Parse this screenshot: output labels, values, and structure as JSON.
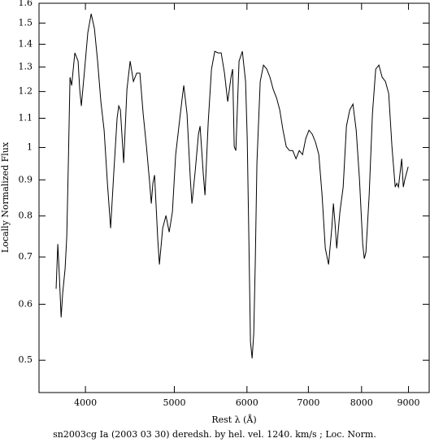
{
  "chart_data": {
    "type": "line",
    "title": "sn2003cg Ia (2003 03 30) deredsh. by hel. vel.  1240. km/s ;  Loc. Norm.",
    "xlabel": "Rest λ (Å)",
    "ylabel": "Locally Normalized Flux",
    "xscale": "log",
    "yscale": "log",
    "xlim": [
      3560,
      9480
    ],
    "ylim": [
      0.45,
      1.6
    ],
    "xticks": [
      4000,
      5000,
      6000,
      7000,
      8000,
      9000
    ],
    "yticks": [
      0.5,
      0.6,
      0.7,
      0.8,
      0.9,
      1,
      1.1,
      1.2,
      1.3,
      1.4,
      1.5,
      1.6
    ],
    "color": "#000000",
    "x": [
      3716,
      3732,
      3747,
      3763,
      3778,
      3801,
      3817,
      3832,
      3848,
      3864,
      3895,
      3927,
      3943,
      3959,
      3992,
      4024,
      4058,
      4091,
      4124,
      4158,
      4192,
      4227,
      4261,
      4296,
      4331,
      4349,
      4367,
      4403,
      4439,
      4475,
      4512,
      4549,
      4586,
      4624,
      4662,
      4700,
      4719,
      4738,
      4758,
      4797,
      4816,
      4856,
      4896,
      4936,
      4976,
      5017,
      5058,
      5100,
      5120,
      5162,
      5205,
      5226,
      5269,
      5312,
      5334,
      5378,
      5400,
      5444,
      5489,
      5534,
      5579,
      5624,
      5671,
      5717,
      5764,
      5788,
      5811,
      5835,
      5882,
      5931,
      5979,
      6004,
      6028,
      6053,
      6078,
      6103,
      6127,
      6152,
      6203,
      6254,
      6306,
      6357,
      6409,
      6462,
      6515,
      6568,
      6622,
      6676,
      6731,
      6786,
      6842,
      6898,
      6955,
      7011,
      7069,
      7127,
      7186,
      7245,
      7304,
      7364,
      7424,
      7454,
      7485,
      7516,
      7577,
      7639,
      7702,
      7766,
      7829,
      7893,
      7958,
      8023,
      8055,
      8088,
      8154,
      8221,
      8289,
      8356,
      8425,
      8494,
      8564,
      8634,
      8705,
      8740,
      8776,
      8848,
      8884,
      8920,
      8993
    ],
    "values": [
      0.631,
      0.73,
      0.656,
      0.575,
      0.622,
      0.674,
      0.749,
      0.951,
      1.257,
      1.224,
      1.361,
      1.325,
      1.208,
      1.145,
      1.291,
      1.454,
      1.546,
      1.474,
      1.325,
      1.161,
      1.058,
      0.89,
      0.769,
      0.926,
      1.101,
      1.145,
      1.13,
      0.951,
      1.208,
      1.325,
      1.24,
      1.274,
      1.274,
      1.115,
      1.003,
      0.89,
      0.833,
      0.89,
      0.914,
      0.739,
      0.683,
      0.769,
      0.801,
      0.759,
      0.811,
      0.977,
      1.072,
      1.176,
      1.224,
      1.115,
      0.902,
      0.833,
      0.926,
      1.044,
      1.072,
      0.914,
      0.856,
      1.086,
      1.291,
      1.368,
      1.361,
      1.361,
      1.274,
      1.161,
      1.257,
      1.291,
      1.003,
      0.99,
      1.325,
      1.368,
      1.24,
      1.03,
      0.749,
      0.531,
      0.503,
      0.545,
      0.692,
      0.951,
      1.24,
      1.308,
      1.291,
      1.257,
      1.208,
      1.176,
      1.13,
      1.058,
      1.003,
      0.99,
      0.99,
      0.964,
      0.99,
      0.977,
      1.03,
      1.058,
      1.044,
      1.017,
      0.977,
      0.856,
      0.72,
      0.683,
      0.769,
      0.833,
      0.78,
      0.72,
      0.811,
      0.879,
      1.072,
      1.13,
      1.152,
      1.058,
      0.902,
      0.73,
      0.696,
      0.711,
      0.856,
      1.115,
      1.291,
      1.308,
      1.257,
      1.24,
      1.192,
      1.003,
      0.879,
      0.89,
      0.879,
      0.964,
      0.879,
      0.902,
      0.939
    ]
  }
}
